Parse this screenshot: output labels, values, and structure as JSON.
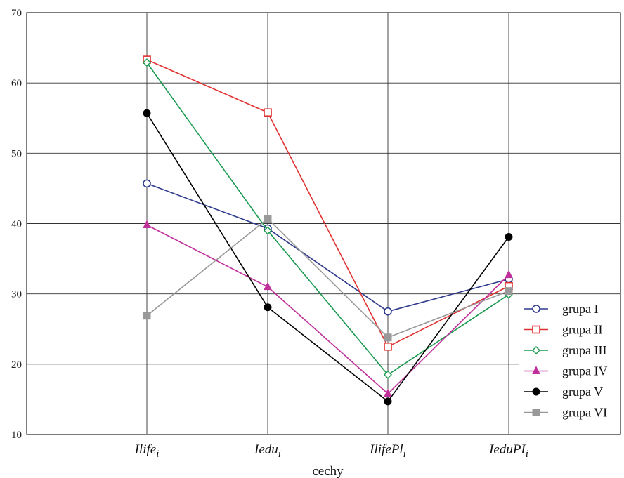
{
  "chart_data": {
    "type": "line",
    "categories": [
      {
        "main": "Ilife",
        "sub": "i"
      },
      {
        "main": "Iedu",
        "sub": "i"
      },
      {
        "main": "IlifePl",
        "sub": "i"
      },
      {
        "main": "IeduPI",
        "sub": "i"
      }
    ],
    "xlabel": "cechy",
    "ylabel": "",
    "ylim": [
      10,
      70
    ],
    "yticks": [
      "10",
      "20",
      "30",
      "40",
      "50",
      "60",
      "70"
    ],
    "grid": true,
    "legend_position": "bottom-right",
    "series": [
      {
        "name": "grupa I",
        "color": "#2e3a8c",
        "marker": "circle-open",
        "values": [
          45.7,
          39.3,
          27.5,
          32.1
        ]
      },
      {
        "name": "grupa II",
        "color": "#e03030",
        "marker": "square-open",
        "values": [
          63.3,
          55.8,
          22.5,
          31.1
        ]
      },
      {
        "name": "grupa III",
        "color": "#1a9a50",
        "marker": "diamond-open",
        "values": [
          62.9,
          39.0,
          18.5,
          29.9
        ]
      },
      {
        "name": "grupa IV",
        "color": "#c0309a",
        "marker": "triangle-filled",
        "values": [
          39.8,
          31.0,
          15.8,
          32.7
        ]
      },
      {
        "name": "grupa V",
        "color": "#000000",
        "marker": "circle-filled",
        "values": [
          55.7,
          28.1,
          14.7,
          38.1
        ]
      },
      {
        "name": "grupa VI",
        "color": "#999999",
        "marker": "square-filled",
        "values": [
          26.9,
          40.7,
          23.8,
          30.4
        ]
      }
    ]
  }
}
